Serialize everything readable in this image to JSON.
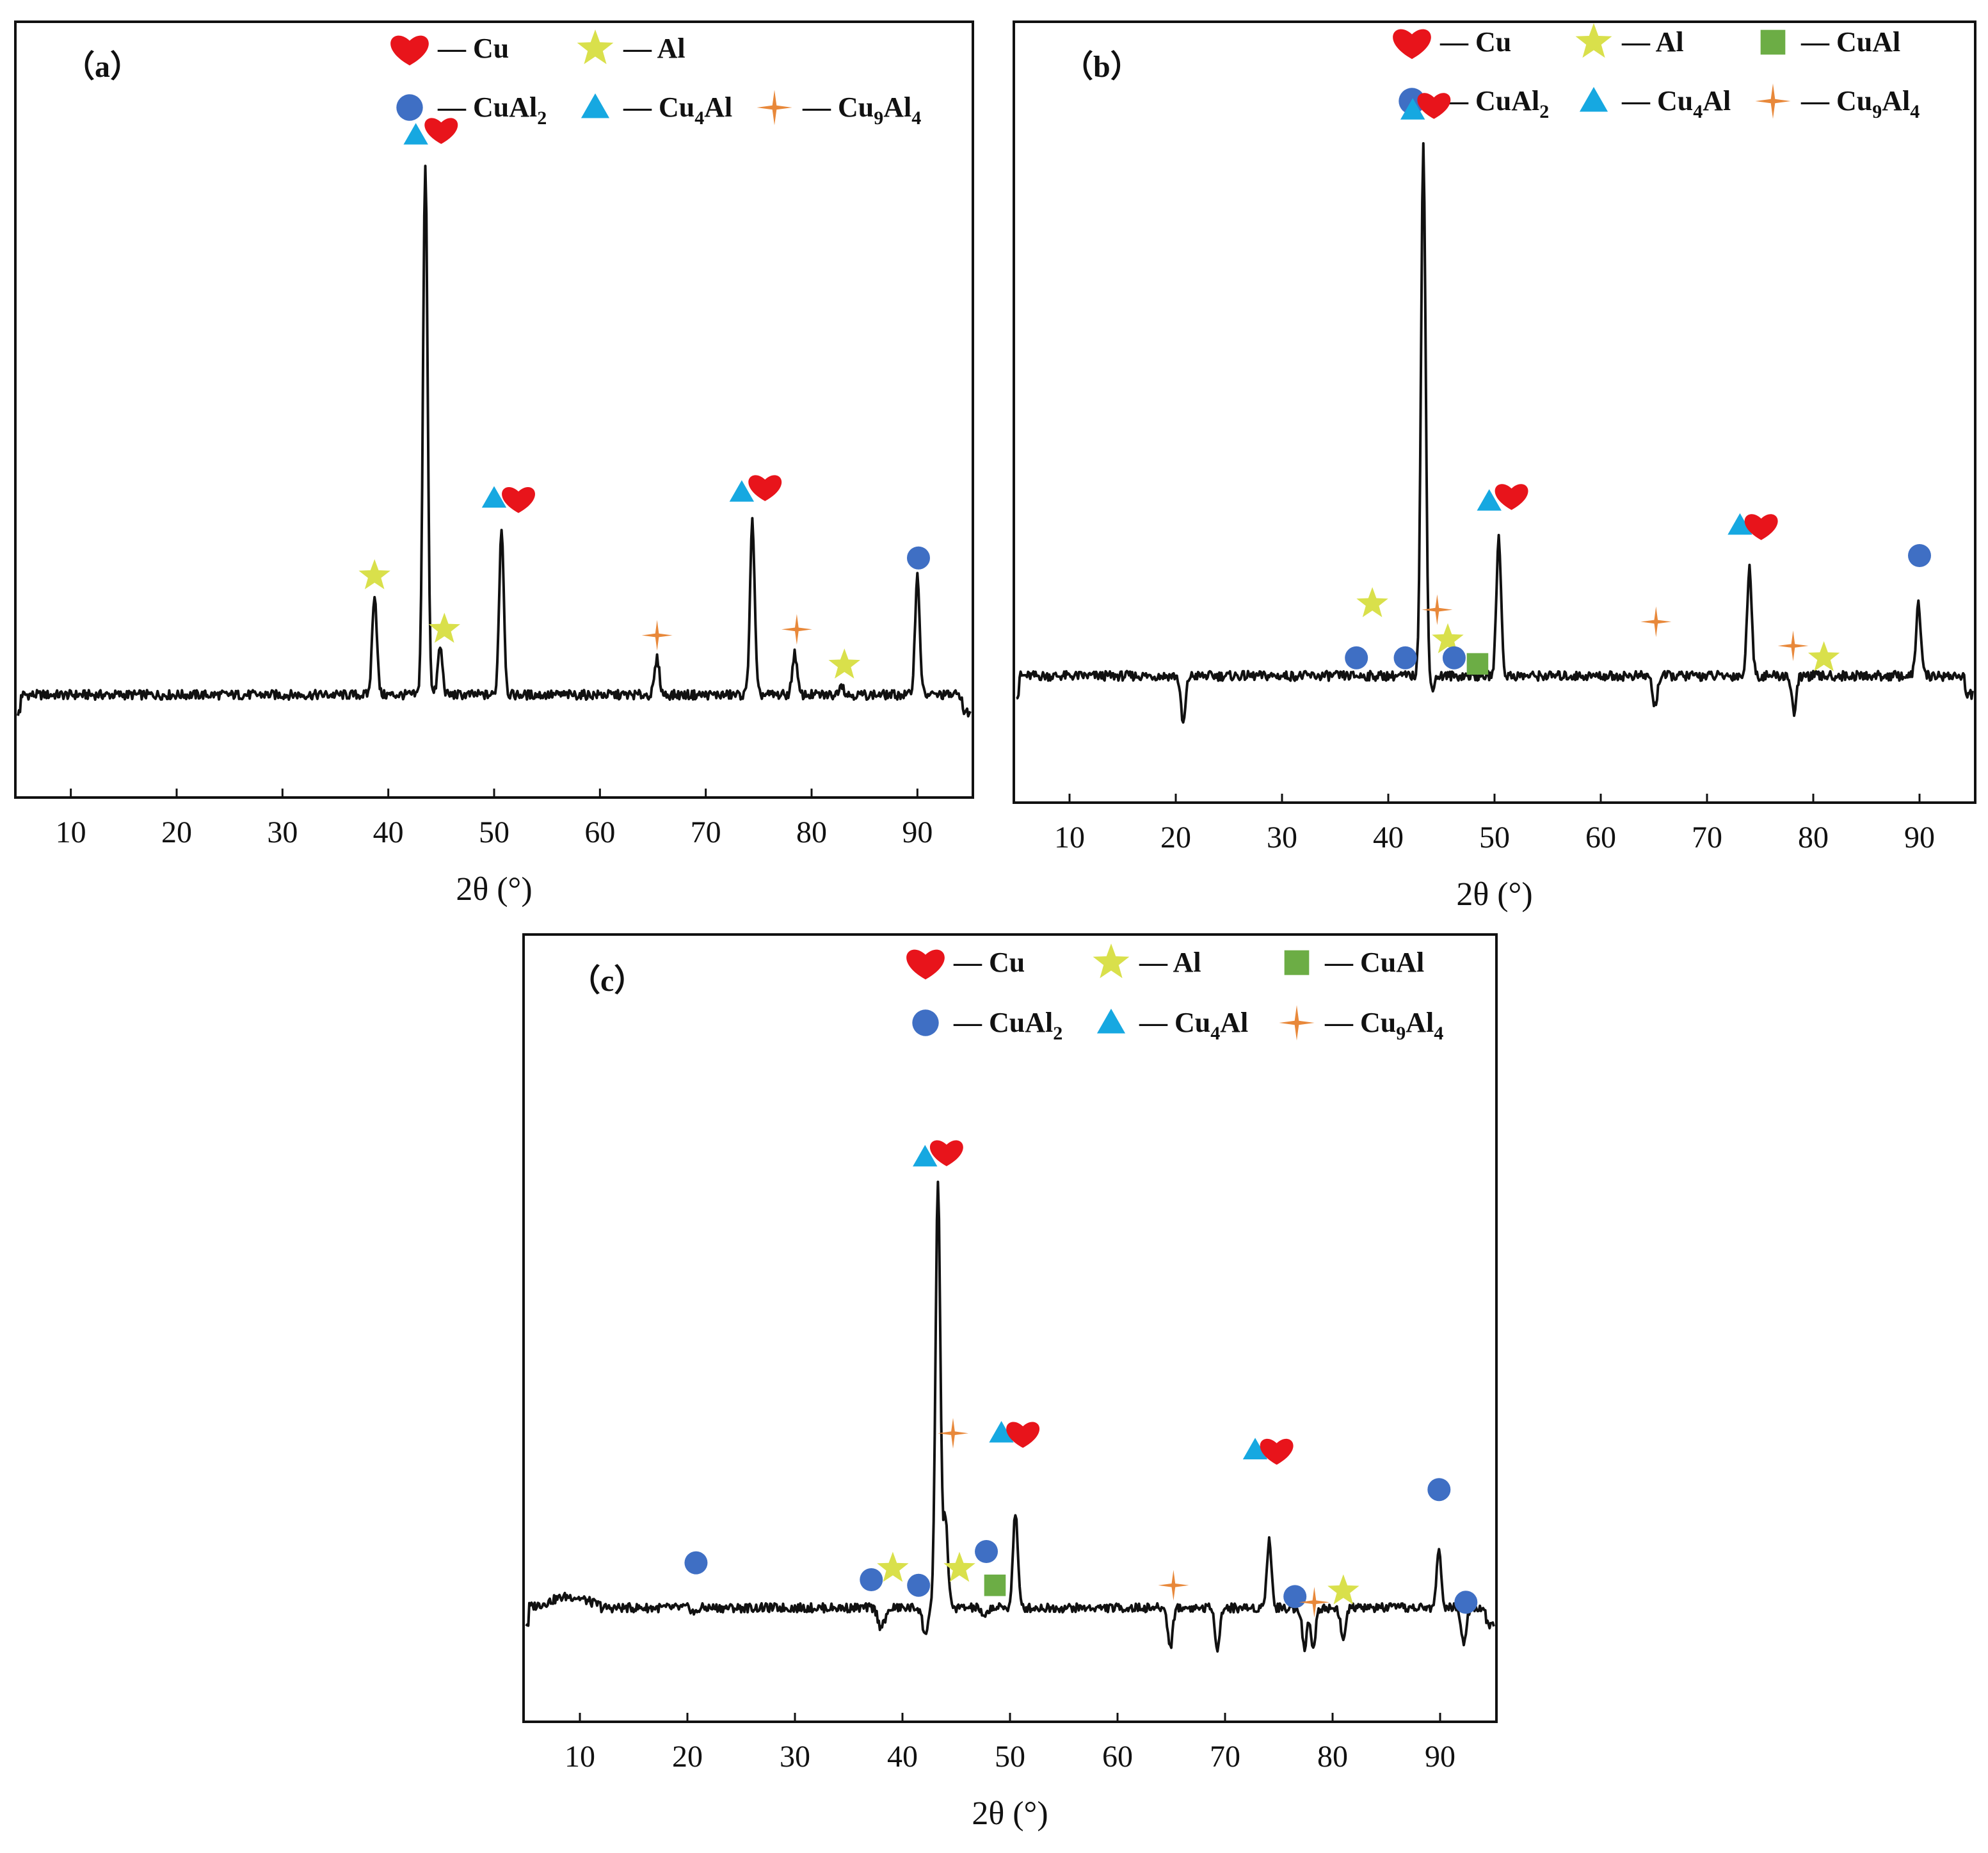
{
  "markers": {
    "Cu": {
      "color": "#e8141b",
      "icon": "heart-icon"
    },
    "Al": {
      "color": "#d9e04b",
      "icon": "star-icon"
    },
    "CuAl": {
      "color": "#6cad45",
      "icon": "square-icon"
    },
    "CuAl2": {
      "color": "#3f6fc4",
      "icon": "circle-icon"
    },
    "Cu4Al": {
      "color": "#16a8e1",
      "icon": "triangle-icon"
    },
    "Cu9Al4": {
      "color": "#e8883a",
      "icon": "four-point-star-icon"
    }
  },
  "chart_data": [
    {
      "type": "line",
      "panel_label": "（a）",
      "xlabel": "2θ (°)",
      "ylabel": "",
      "xlim": [
        5,
        95
      ],
      "ylim": [
        0,
        100
      ],
      "xticks": [
        10,
        20,
        30,
        40,
        50,
        60,
        70,
        80,
        90
      ],
      "tick_labels": [
        "10",
        "20",
        "30",
        "40",
        "50",
        "60",
        "70",
        "80",
        "90"
      ],
      "baseline": 8,
      "legend": [
        {
          "phase": "Cu",
          "label": "— Cu"
        },
        {
          "phase": "Al",
          "label": "— Al"
        },
        {
          "phase": "CuAl2",
          "label": "— CuAl",
          "sub": "2"
        },
        {
          "phase": "Cu4Al",
          "label": "— Cu",
          "sub": "4",
          "suffix": "Al"
        },
        {
          "phase": "Cu9Al4",
          "label": "— Cu",
          "sub": "9",
          "suffix": "Al",
          "sub2": "4"
        }
      ],
      "peaks": [
        {
          "x": 38.7,
          "y": 25,
          "phases": [
            "Al"
          ]
        },
        {
          "x": 43.5,
          "y": 97,
          "phases": [
            "Cu4Al",
            "Cu"
          ]
        },
        {
          "x": 44.9,
          "y": 16,
          "phases": [
            "Al"
          ]
        },
        {
          "x": 50.7,
          "y": 36,
          "phases": [
            "Cu4Al",
            "Cu"
          ]
        },
        {
          "x": 65.4,
          "y": 14,
          "phases": [
            "Cu9Al4"
          ]
        },
        {
          "x": 74.4,
          "y": 37,
          "phases": [
            "Cu4Al",
            "Cu"
          ]
        },
        {
          "x": 78.4,
          "y": 15,
          "phases": [
            "Cu9Al4"
          ]
        },
        {
          "x": 82.8,
          "y": 10,
          "phases": [
            "Al"
          ]
        },
        {
          "x": 90.0,
          "y": 28,
          "phases": [
            "CuAl2"
          ]
        }
      ],
      "marker_points": [
        {
          "phase": "Al",
          "x": 38.7,
          "y": 28
        },
        {
          "phase": "Cu4Al",
          "x": 42.6,
          "y": 102
        },
        {
          "phase": "Cu",
          "x": 45.0,
          "y": 103
        },
        {
          "phase": "Al",
          "x": 45.3,
          "y": 19
        },
        {
          "phase": "Cu4Al",
          "x": 50.0,
          "y": 41
        },
        {
          "phase": "Cu",
          "x": 52.3,
          "y": 41
        },
        {
          "phase": "Cu9Al4",
          "x": 65.4,
          "y": 18
        },
        {
          "phase": "Cu4Al",
          "x": 73.4,
          "y": 42
        },
        {
          "phase": "Cu",
          "x": 75.6,
          "y": 43
        },
        {
          "phase": "Cu9Al4",
          "x": 78.6,
          "y": 19
        },
        {
          "phase": "Al",
          "x": 83.1,
          "y": 13
        },
        {
          "phase": "CuAl2",
          "x": 90.1,
          "y": 31
        }
      ]
    },
    {
      "type": "line",
      "panel_label": "（b）",
      "xlabel": "2θ (°)",
      "ylabel": "",
      "xlim": [
        5,
        95
      ],
      "ylim": [
        0,
        100
      ],
      "xticks": [
        10,
        20,
        30,
        40,
        50,
        60,
        70,
        80,
        90
      ],
      "tick_labels": [
        "10",
        "20",
        "30",
        "40",
        "50",
        "60",
        "70",
        "80",
        "90"
      ],
      "baseline": 10,
      "legend": [
        {
          "phase": "Cu",
          "label": "— Cu"
        },
        {
          "phase": "Al",
          "label": "— Al"
        },
        {
          "phase": "CuAl",
          "label": "— CuAl"
        },
        {
          "phase": "CuAl2",
          "label": "— CuAl",
          "sub": "2"
        },
        {
          "phase": "Cu4Al",
          "label": "— Cu",
          "sub": "4",
          "suffix": "Al"
        },
        {
          "phase": "Cu9Al4",
          "label": "— Cu",
          "sub": "9",
          "suffix": "Al",
          "sub2": "4"
        }
      ],
      "peaks": [
        {
          "x": 20.7,
          "y": 2,
          "phases": []
        },
        {
          "x": 38.3,
          "y": 10,
          "phases": [
            "Al"
          ]
        },
        {
          "x": 43.3,
          "y": 98,
          "phases": [
            "Cu4Al",
            "Cu"
          ]
        },
        {
          "x": 44.1,
          "y": 8,
          "phases": []
        },
        {
          "x": 50.4,
          "y": 33,
          "phases": [
            "Cu4Al",
            "Cu"
          ]
        },
        {
          "x": 65.1,
          "y": 5,
          "phases": [
            "Cu9Al4"
          ]
        },
        {
          "x": 74.0,
          "y": 28,
          "phases": [
            "Cu4Al",
            "Cu"
          ]
        },
        {
          "x": 78.2,
          "y": 4,
          "phases": [
            "Cu9Al4"
          ]
        },
        {
          "x": 89.9,
          "y": 22,
          "phases": [
            "CuAl2"
          ]
        }
      ],
      "marker_points": [
        {
          "phase": "CuAl2",
          "x": 37.0,
          "y": 13
        },
        {
          "phase": "Al",
          "x": 38.5,
          "y": 22
        },
        {
          "phase": "CuAl2",
          "x": 41.6,
          "y": 13
        },
        {
          "phase": "Cu4Al",
          "x": 42.3,
          "y": 104
        },
        {
          "phase": "Cu",
          "x": 44.3,
          "y": 105
        },
        {
          "phase": "Cu9Al4",
          "x": 44.6,
          "y": 21
        },
        {
          "phase": "Al",
          "x": 45.6,
          "y": 16
        },
        {
          "phase": "CuAl2",
          "x": 46.2,
          "y": 13
        },
        {
          "phase": "CuAl",
          "x": 48.4,
          "y": 12
        },
        {
          "phase": "Cu4Al",
          "x": 49.5,
          "y": 39
        },
        {
          "phase": "Cu",
          "x": 51.6,
          "y": 40
        },
        {
          "phase": "Cu9Al4",
          "x": 65.2,
          "y": 19
        },
        {
          "phase": "Cu4Al",
          "x": 73.1,
          "y": 35
        },
        {
          "phase": "Cu",
          "x": 75.1,
          "y": 35
        },
        {
          "phase": "Cu9Al4",
          "x": 78.1,
          "y": 15
        },
        {
          "phase": "Al",
          "x": 81.0,
          "y": 13
        },
        {
          "phase": "CuAl2",
          "x": 90.0,
          "y": 30
        }
      ]
    },
    {
      "type": "line",
      "panel_label": "（c）",
      "xlabel": "2θ (°)",
      "ylabel": "",
      "xlim": [
        5,
        95
      ],
      "ylim": [
        0,
        100
      ],
      "xticks": [
        10,
        20,
        30,
        40,
        50,
        60,
        70,
        80,
        90
      ],
      "tick_labels": [
        "10",
        "20",
        "30",
        "40",
        "50",
        "60",
        "70",
        "80",
        "90"
      ],
      "baseline": 10,
      "legend": [
        {
          "phase": "Cu",
          "label": "— Cu"
        },
        {
          "phase": "Al",
          "label": "— Al"
        },
        {
          "phase": "CuAl",
          "label": "— CuAl"
        },
        {
          "phase": "CuAl2",
          "label": "— CuAl",
          "sub": "2"
        },
        {
          "phase": "Cu4Al",
          "label": "— Cu",
          "sub": "4",
          "suffix": "Al"
        },
        {
          "phase": "Cu9Al4",
          "label": "— Cu",
          "sub": "9",
          "suffix": "Al",
          "sub2": "4"
        }
      ],
      "peaks": [
        {
          "x": 20.7,
          "y": 9,
          "phases": [
            "CuAl2"
          ]
        },
        {
          "x": 37.9,
          "y": 7,
          "phases": [
            "CuAl2"
          ]
        },
        {
          "x": 38.4,
          "y": 8,
          "phases": [
            "Al"
          ]
        },
        {
          "x": 42.1,
          "y": 5,
          "phases": [
            "CuAl2"
          ]
        },
        {
          "x": 43.3,
          "y": 86,
          "phases": [
            "Cu4Al",
            "Cu"
          ]
        },
        {
          "x": 44.0,
          "y": 26,
          "phases": [
            "Cu9Al4"
          ]
        },
        {
          "x": 44.6,
          "y": 10,
          "phases": [
            "Al"
          ]
        },
        {
          "x": 47.6,
          "y": 8,
          "phases": [
            "CuAl2",
            "CuAl"
          ]
        },
        {
          "x": 50.5,
          "y": 27,
          "phases": [
            "Cu4Al",
            "Cu"
          ]
        },
        {
          "x": 64.9,
          "y": 3,
          "phases": [
            "Cu9Al4"
          ]
        },
        {
          "x": 69.3,
          "y": 3,
          "phases": []
        },
        {
          "x": 74.1,
          "y": 22,
          "phases": [
            "Cu4Al",
            "Cu"
          ]
        },
        {
          "x": 77.4,
          "y": 3,
          "phases": [
            "CuAl2"
          ]
        },
        {
          "x": 78.2,
          "y": 3,
          "phases": [
            "Cu9Al4"
          ]
        },
        {
          "x": 81.0,
          "y": 4,
          "phases": [
            "Al"
          ]
        },
        {
          "x": 89.9,
          "y": 20,
          "phases": [
            "CuAl2"
          ]
        },
        {
          "x": 92.2,
          "y": 4,
          "phases": [
            "CuAl2"
          ]
        }
      ],
      "marker_points": [
        {
          "phase": "CuAl2",
          "x": 20.8,
          "y": 18
        },
        {
          "phase": "CuAl2",
          "x": 37.1,
          "y": 15
        },
        {
          "phase": "Al",
          "x": 39.1,
          "y": 17
        },
        {
          "phase": "CuAl2",
          "x": 41.5,
          "y": 14
        },
        {
          "phase": "Cu4Al",
          "x": 42.1,
          "y": 90
        },
        {
          "phase": "Cu",
          "x": 44.1,
          "y": 91
        },
        {
          "phase": "Cu9Al4",
          "x": 44.7,
          "y": 41
        },
        {
          "phase": "Al",
          "x": 45.3,
          "y": 17
        },
        {
          "phase": "CuAl2",
          "x": 47.8,
          "y": 20
        },
        {
          "phase": "CuAl",
          "x": 48.6,
          "y": 14
        },
        {
          "phase": "Cu4Al",
          "x": 49.2,
          "y": 41
        },
        {
          "phase": "Cu",
          "x": 51.2,
          "y": 41
        },
        {
          "phase": "Cu9Al4",
          "x": 65.2,
          "y": 14
        },
        {
          "phase": "Cu4Al",
          "x": 72.8,
          "y": 38
        },
        {
          "phase": "Cu",
          "x": 74.8,
          "y": 38
        },
        {
          "phase": "CuAl2",
          "x": 76.5,
          "y": 12
        },
        {
          "phase": "Cu9Al4",
          "x": 78.3,
          "y": 11
        },
        {
          "phase": "Al",
          "x": 81.0,
          "y": 13
        },
        {
          "phase": "CuAl2",
          "x": 89.9,
          "y": 31
        },
        {
          "phase": "CuAl2",
          "x": 92.4,
          "y": 11
        }
      ]
    }
  ]
}
